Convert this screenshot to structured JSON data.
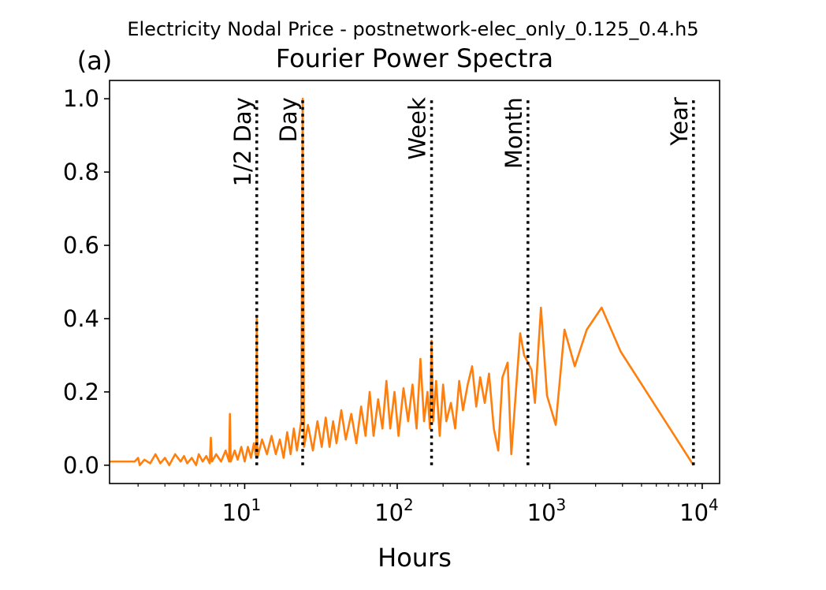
{
  "chart_data": {
    "type": "line",
    "suptitle": "Electricity Nodal Price - postnetwork-elec_only_0.125_0.4.h5",
    "panel_label": "(a)",
    "title": "Fourier Power Spectra",
    "xlabel": "Hours",
    "ylabel": "",
    "xscale": "log",
    "xlim": [
      1.3,
      13000
    ],
    "ylim": [
      -0.05,
      1.05
    ],
    "grid": false,
    "x_ticks": [
      {
        "value": 10,
        "base": "10",
        "exp": "1"
      },
      {
        "value": 100,
        "base": "10",
        "exp": "2"
      },
      {
        "value": 1000,
        "base": "10",
        "exp": "3"
      },
      {
        "value": 10000,
        "base": "10",
        "exp": "4"
      }
    ],
    "y_ticks": [
      {
        "value": 0.0,
        "label": "0.0"
      },
      {
        "value": 0.2,
        "label": "0.2"
      },
      {
        "value": 0.4,
        "label": "0.4"
      },
      {
        "value": 0.6,
        "label": "0.6"
      },
      {
        "value": 0.8,
        "label": "0.8"
      },
      {
        "value": 1.0,
        "label": "1.0"
      }
    ],
    "reference_lines": [
      {
        "label": "1/2 Day",
        "x": 12,
        "color": "#000000"
      },
      {
        "label": "Day",
        "x": 24,
        "color": "#000000"
      },
      {
        "label": "Week",
        "x": 168,
        "color": "#000000"
      },
      {
        "label": "Month",
        "x": 720,
        "color": "#000000"
      },
      {
        "label": "Year",
        "x": 8760,
        "color": "#000000"
      }
    ],
    "series": [
      {
        "color": "#ff7f0e",
        "points": [
          [
            1.3,
            0.01
          ],
          [
            1.9,
            0.01
          ],
          [
            2.0,
            0.02
          ],
          [
            2.05,
            0.0
          ],
          [
            2.2,
            0.015
          ],
          [
            2.4,
            0.005
          ],
          [
            2.6,
            0.03
          ],
          [
            2.8,
            0.005
          ],
          [
            3.0,
            0.02
          ],
          [
            3.2,
            0.0
          ],
          [
            3.5,
            0.03
          ],
          [
            3.8,
            0.01
          ],
          [
            4.0,
            0.025
          ],
          [
            4.2,
            0.005
          ],
          [
            4.5,
            0.02
          ],
          [
            4.8,
            0.0
          ],
          [
            5.0,
            0.03
          ],
          [
            5.3,
            0.01
          ],
          [
            5.6,
            0.025
          ],
          [
            5.9,
            0.005
          ],
          [
            6.0,
            0.075
          ],
          [
            6.1,
            0.01
          ],
          [
            6.5,
            0.03
          ],
          [
            7.0,
            0.01
          ],
          [
            7.5,
            0.04
          ],
          [
            7.9,
            0.01
          ],
          [
            8.0,
            0.14
          ],
          [
            8.1,
            0.01
          ],
          [
            8.6,
            0.04
          ],
          [
            9.0,
            0.015
          ],
          [
            9.5,
            0.05
          ],
          [
            10.0,
            0.01
          ],
          [
            10.5,
            0.05
          ],
          [
            11.0,
            0.02
          ],
          [
            11.5,
            0.06
          ],
          [
            11.9,
            0.02
          ],
          [
            12.0,
            0.4
          ],
          [
            12.1,
            0.02
          ],
          [
            13.0,
            0.07
          ],
          [
            14.0,
            0.03
          ],
          [
            15.0,
            0.08
          ],
          [
            16.0,
            0.03
          ],
          [
            17.0,
            0.07
          ],
          [
            18.0,
            0.02
          ],
          [
            19.0,
            0.09
          ],
          [
            20.0,
            0.03
          ],
          [
            21.0,
            0.1
          ],
          [
            22.0,
            0.04
          ],
          [
            23.5,
            0.12
          ],
          [
            24.0,
            1.0
          ],
          [
            24.5,
            0.05
          ],
          [
            26.0,
            0.11
          ],
          [
            28.0,
            0.04
          ],
          [
            30.0,
            0.12
          ],
          [
            32.0,
            0.05
          ],
          [
            34.0,
            0.13
          ],
          [
            36.0,
            0.05
          ],
          [
            38.0,
            0.12
          ],
          [
            40.0,
            0.06
          ],
          [
            43.0,
            0.15
          ],
          [
            46.0,
            0.07
          ],
          [
            50.0,
            0.14
          ],
          [
            54.0,
            0.06
          ],
          [
            58.0,
            0.16
          ],
          [
            62.0,
            0.08
          ],
          [
            66.0,
            0.2
          ],
          [
            70.0,
            0.08
          ],
          [
            75.0,
            0.18
          ],
          [
            80.0,
            0.1
          ],
          [
            85.0,
            0.23
          ],
          [
            90.0,
            0.1
          ],
          [
            96.0,
            0.2
          ],
          [
            102.0,
            0.08
          ],
          [
            110.0,
            0.21
          ],
          [
            118.0,
            0.12
          ],
          [
            126.0,
            0.22
          ],
          [
            134.0,
            0.1
          ],
          [
            142.0,
            0.29
          ],
          [
            150.0,
            0.12
          ],
          [
            158.0,
            0.2
          ],
          [
            164.0,
            0.1
          ],
          [
            168.0,
            0.34
          ],
          [
            172.0,
            0.12
          ],
          [
            180.0,
            0.23
          ],
          [
            190.0,
            0.08
          ],
          [
            200.0,
            0.22
          ],
          [
            210.0,
            0.12
          ],
          [
            225.0,
            0.17
          ],
          [
            240.0,
            0.1
          ],
          [
            255.0,
            0.23
          ],
          [
            270.0,
            0.15
          ],
          [
            290.0,
            0.22
          ],
          [
            310.0,
            0.27
          ],
          [
            330.0,
            0.16
          ],
          [
            350.0,
            0.24
          ],
          [
            375.0,
            0.17
          ],
          [
            400.0,
            0.25
          ],
          [
            430.0,
            0.1
          ],
          [
            460.0,
            0.04
          ],
          [
            490.0,
            0.24
          ],
          [
            530.0,
            0.28
          ],
          [
            560.0,
            0.03
          ],
          [
            600.0,
            0.2
          ],
          [
            640.0,
            0.36
          ],
          [
            680.0,
            0.3
          ],
          [
            720.0,
            0.28
          ],
          [
            760.0,
            0.26
          ],
          [
            800.0,
            0.17
          ],
          [
            876.0,
            0.43
          ],
          [
            960.0,
            0.19
          ],
          [
            1095.0,
            0.11
          ],
          [
            1250.0,
            0.37
          ],
          [
            1460.0,
            0.27
          ],
          [
            1750.0,
            0.37
          ],
          [
            2190.0,
            0.43
          ],
          [
            2920.0,
            0.31
          ],
          [
            8760.0,
            0.0
          ]
        ]
      }
    ]
  }
}
